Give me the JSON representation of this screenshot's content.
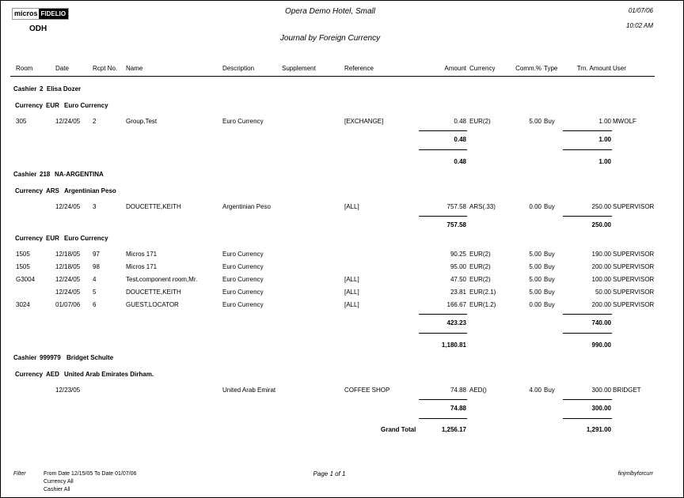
{
  "header": {
    "logo": {
      "left": "micros",
      "right": "FIDELIO"
    },
    "property_code": "ODH",
    "hotel_name": "Opera Demo Hotel, Small",
    "report_title": "Journal  by Foreign Currency",
    "date": "01/07/06",
    "time": "10:02 AM"
  },
  "columns": {
    "room": "Room",
    "date": "Date",
    "rcpt": "Rcpt No.",
    "name": "Name",
    "description": "Description",
    "supplement": "Supplement",
    "reference": "Reference",
    "amount": "Amount",
    "currency": "Currency",
    "comm": "Comm.%",
    "type": "Type",
    "trn_amount": "Trn. Amount",
    "user": "User"
  },
  "cashiers": [
    {
      "label": "Cashier",
      "id": "2",
      "name": "Elisa Dozer",
      "currencies": [
        {
          "label": "Currency",
          "code": "EUR",
          "name": "Euro Currency",
          "rows": [
            {
              "room": "305",
              "date": "12/24/05",
              "rcpt": "2",
              "name": "Group,Test",
              "description": "Euro Currency",
              "supplement": "",
              "reference": "[EXCHANGE]",
              "amount": "0.48",
              "currency": "EUR(2)",
              "comm": "5.00",
              "type": "Buy",
              "trn_amount": "1.00",
              "user": "MWOLF"
            }
          ],
          "subtotal": {
            "amount": "0.48",
            "trn_amount": "1.00"
          }
        }
      ],
      "total": {
        "amount": "0.48",
        "trn_amount": "1.00"
      }
    },
    {
      "label": "Cashier",
      "id": "218",
      "name": "NA-ARGENTINA",
      "currencies": [
        {
          "label": "Currency",
          "code": "ARS",
          "name": "Argentinian Peso",
          "rows": [
            {
              "room": "",
              "date": "12/24/05",
              "rcpt": "3",
              "name": "DOUCETTE,KEITH",
              "description": "Argentinian Peso",
              "supplement": "",
              "reference": "[ALL]",
              "amount": "757.58",
              "currency": "ARS(.33)",
              "comm": "0.00",
              "type": "Buy",
              "trn_amount": "250.00",
              "user": "SUPERVISOR"
            }
          ],
          "subtotal": {
            "amount": "757.58",
            "trn_amount": "250.00"
          }
        },
        {
          "label": "Currency",
          "code": "EUR",
          "name": "Euro Currency",
          "rows": [
            {
              "room": "1505",
              "date": "12/18/05",
              "rcpt": "97",
              "name": "Micros 171",
              "description": "Euro Currency",
              "supplement": "",
              "reference": "",
              "amount": "90.25",
              "currency": "EUR(2)",
              "comm": "5.00",
              "type": "Buy",
              "trn_amount": "190.00",
              "user": "SUPERVISOR"
            },
            {
              "room": "1505",
              "date": "12/18/05",
              "rcpt": "98",
              "name": "Micros 171",
              "description": "Euro Currency",
              "supplement": "",
              "reference": "",
              "amount": "95.00",
              "currency": "EUR(2)",
              "comm": "5.00",
              "type": "Buy",
              "trn_amount": "200.00",
              "user": "SUPERVISOR"
            },
            {
              "room": "G3004",
              "date": "12/24/05",
              "rcpt": "4",
              "name": "Test,component room,Mr.",
              "description": "Euro Currency",
              "supplement": "",
              "reference": "[ALL]",
              "amount": "47.50",
              "currency": "EUR(2)",
              "comm": "5.00",
              "type": "Buy",
              "trn_amount": "100.00",
              "user": "SUPERVISOR"
            },
            {
              "room": "",
              "date": "12/24/05",
              "rcpt": "5",
              "name": "DOUCETTE,KEITH",
              "description": "Euro Currency",
              "supplement": "",
              "reference": "[ALL]",
              "amount": "23.81",
              "currency": "EUR(2.1)",
              "comm": "5.00",
              "type": "Buy",
              "trn_amount": "50.00",
              "user": "SUPERVISOR"
            },
            {
              "room": "3024",
              "date": "01/07/06",
              "rcpt": "6",
              "name": "GUEST,LOCATOR",
              "description": "Euro Currency",
              "supplement": "",
              "reference": "[ALL]",
              "amount": "166.67",
              "currency": "EUR(1.2)",
              "comm": "0.00",
              "type": "Buy",
              "trn_amount": "200.00",
              "user": "SUPERVISOR"
            }
          ],
          "subtotal": {
            "amount": "423.23",
            "trn_amount": "740.00"
          }
        }
      ],
      "total": {
        "amount": "1,180.81",
        "trn_amount": "990.00"
      }
    },
    {
      "label": "Cashier",
      "id": "999979",
      "name": "Bridget Schulte",
      "currencies": [
        {
          "label": "Currency",
          "code": "AED",
          "name": "United Arab Emirates Dirham.",
          "rows": [
            {
              "room": "",
              "date": "12/23/05",
              "rcpt": "",
              "name": "",
              "description": "United Arab Emirat",
              "supplement": "",
              "reference": "COFFEE SHOP",
              "amount": "74.88",
              "currency": "AED()",
              "comm": "4.00",
              "type": "Buy",
              "trn_amount": "300.00",
              "user": "BRIDGET"
            }
          ],
          "subtotal": {
            "amount": "74.88",
            "trn_amount": "300.00"
          }
        }
      ]
    }
  ],
  "grand_total": {
    "label": "Grand Total",
    "amount": "1,256.17",
    "trn_amount": "1,291.00"
  },
  "footer": {
    "filter_label": "Filter",
    "filters": [
      "From Date 12/15/05   To Date 01/07/06",
      "Currency All",
      "Cashier All"
    ],
    "page": "Page 1 of 1",
    "report_name": "finjrnlbyforcurr"
  }
}
